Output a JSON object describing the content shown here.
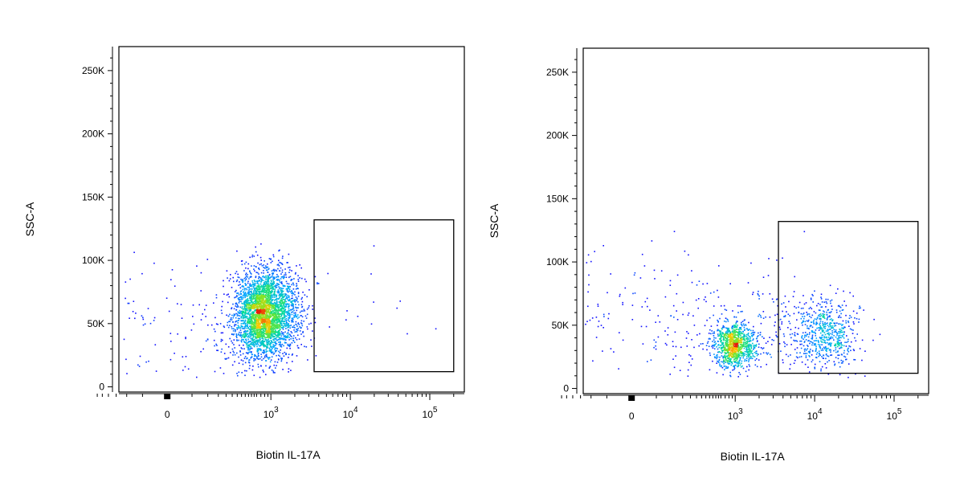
{
  "figure": {
    "background": "#ffffff"
  },
  "chart_data": [
    {
      "type": "scatter",
      "title": "",
      "xlabel": "Biotin IL-17A",
      "ylabel": "SSC-A",
      "x_scale": "biexponential",
      "xlim": [
        -300,
        200000
      ],
      "ylim": [
        0,
        262144
      ],
      "y_ticks": [
        {
          "value": 0,
          "label": "0"
        },
        {
          "value": 50000,
          "label": "50K"
        },
        {
          "value": 100000,
          "label": "100K"
        },
        {
          "value": 150000,
          "label": "150K"
        },
        {
          "value": 200000,
          "label": "200K"
        },
        {
          "value": 250000,
          "label": "250K"
        }
      ],
      "x_ticks": [
        {
          "value": 0,
          "label": "0",
          "exp": ""
        },
        {
          "value": 1000,
          "label": "10",
          "exp": "3"
        },
        {
          "value": 10000,
          "label": "10",
          "exp": "4"
        },
        {
          "value": 100000,
          "label": "10",
          "exp": "5"
        }
      ],
      "gate": {
        "x_min": 3500,
        "x_max": 200000,
        "y_min": 12000,
        "y_max": 132000
      },
      "grid": false,
      "colormap": "pseudocolor density",
      "point_color": "#1010ff",
      "populations": [
        {
          "x_center": 800,
          "x_spread_decades": 0.22,
          "y_center": 58000,
          "y_spread": 17000,
          "n": 3400
        },
        {
          "x_center": 150,
          "x_spread_decades": 0.3,
          "y_center": 45000,
          "y_spread": 25000,
          "n": 260
        },
        {
          "x_center": 15000,
          "x_spread_decades": 0.45,
          "y_center": 65000,
          "y_spread": 22000,
          "n": 14
        }
      ]
    },
    {
      "type": "scatter",
      "title": "",
      "xlabel": "Biotin IL-17A",
      "ylabel": "SSC-A",
      "x_scale": "biexponential",
      "xlim": [
        -300,
        200000
      ],
      "ylim": [
        0,
        262144
      ],
      "y_ticks": [
        {
          "value": 0,
          "label": "0"
        },
        {
          "value": 50000,
          "label": "50K"
        },
        {
          "value": 100000,
          "label": "100K"
        },
        {
          "value": 150000,
          "label": "150K"
        },
        {
          "value": 200000,
          "label": "200K"
        },
        {
          "value": 250000,
          "label": "250K"
        }
      ],
      "x_ticks": [
        {
          "value": 0,
          "label": "0",
          "exp": ""
        },
        {
          "value": 1000,
          "label": "10",
          "exp": "3"
        },
        {
          "value": 10000,
          "label": "10",
          "exp": "4"
        },
        {
          "value": 100000,
          "label": "10",
          "exp": "5"
        }
      ],
      "gate": {
        "x_min": 3500,
        "x_max": 200000,
        "y_min": 12000,
        "y_max": 132000
      },
      "grid": false,
      "colormap": "pseudocolor density",
      "point_color": "#1010ff",
      "populations": [
        {
          "x_center": 950,
          "x_spread_decades": 0.15,
          "y_center": 35000,
          "y_spread": 9000,
          "n": 1000
        },
        {
          "x_center": 13000,
          "x_spread_decades": 0.22,
          "y_center": 43000,
          "y_spread": 14000,
          "n": 650
        },
        {
          "x_center": 20,
          "x_spread_decades": 0.3,
          "y_center": 55000,
          "y_spread": 28000,
          "n": 240
        },
        {
          "x_center": 2500,
          "x_spread_decades": 0.25,
          "y_center": 55000,
          "y_spread": 25000,
          "n": 90
        }
      ]
    }
  ]
}
